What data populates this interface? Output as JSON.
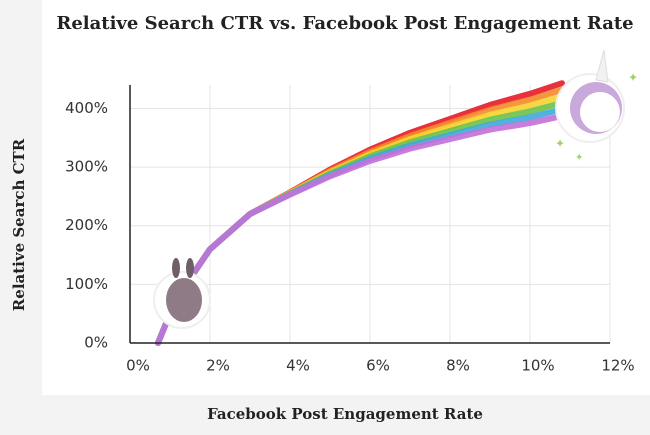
{
  "chart_data": {
    "type": "line",
    "title": "Relative Search CTR vs. Facebook Post Engagement Rate",
    "x_label": "Facebook Post Engagement Rate",
    "y_label": "Relative Search CTR",
    "xlim": [
      0,
      12
    ],
    "ylim": [
      0,
      440
    ],
    "xticks": [
      {
        "value": 0,
        "label": "0%"
      },
      {
        "value": 2,
        "label": "2%"
      },
      {
        "value": 4,
        "label": "4%"
      },
      {
        "value": 6,
        "label": "6%"
      },
      {
        "value": 8,
        "label": "8%"
      },
      {
        "value": 10,
        "label": "10%"
      },
      {
        "value": 12,
        "label": "12%"
      }
    ],
    "yticks": [
      {
        "value": 0,
        "label": "0%"
      },
      {
        "value": 100,
        "label": "100%"
      },
      {
        "value": 200,
        "label": "200%"
      },
      {
        "value": 300,
        "label": "300%"
      },
      {
        "value": 400,
        "label": "400%"
      }
    ],
    "grid": true,
    "series": [
      {
        "colors": [
          "#e8313b",
          "#f4892a",
          "#f7d330",
          "#6cc24a",
          "#3fa9dc",
          "#c470d8"
        ],
        "x": [
          0.7,
          1,
          1.5,
          2,
          3,
          4,
          5,
          6,
          7,
          8,
          9,
          10,
          10.8
        ],
        "values": [
          0,
          50,
          110,
          160,
          220,
          255,
          290,
          320,
          345,
          365,
          385,
          400,
          415
        ]
      }
    ]
  }
}
